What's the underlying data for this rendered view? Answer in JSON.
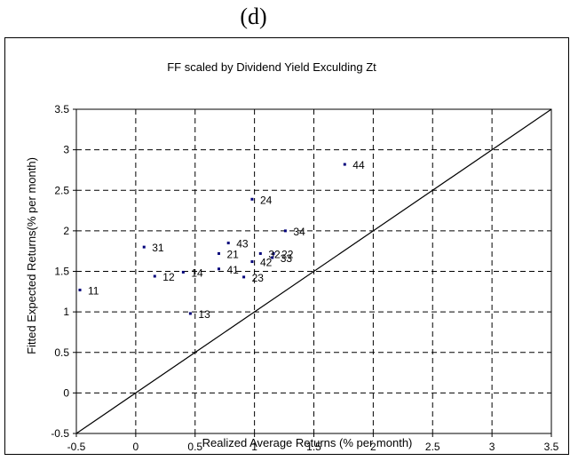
{
  "panel_label": "(d)",
  "chart_data": {
    "type": "scatter",
    "title": "FF  scaled by Dividend Yield  Exculding  Zt",
    "xlabel": "Realized Average Returns (% per month)",
    "ylabel": "Fitted Expected Returns(% per month)",
    "xlim": [
      -0.5,
      3.5
    ],
    "ylim": [
      -0.5,
      3.5
    ],
    "x_ticks": [
      "-0.5",
      "0",
      "0.5",
      "1",
      "1.5",
      "2",
      "2.5",
      "3",
      "3.5"
    ],
    "y_ticks": [
      "-0.5",
      "0",
      "0.5",
      "1",
      "1.5",
      "2",
      "2.5",
      "3",
      "3.5"
    ],
    "grid": true,
    "reference_line": {
      "from": [
        -0.5,
        -0.5
      ],
      "to": [
        3.5,
        3.5
      ]
    },
    "points": [
      {
        "label": "11",
        "x": -0.47,
        "y": 1.27
      },
      {
        "label": "12",
        "x": 0.16,
        "y": 1.44
      },
      {
        "label": "13",
        "x": 0.46,
        "y": 0.98
      },
      {
        "label": "14",
        "x": 0.4,
        "y": 1.49
      },
      {
        "label": "21",
        "x": 0.7,
        "y": 1.72
      },
      {
        "label": "22",
        "x": 1.16,
        "y": 1.72
      },
      {
        "label": "23",
        "x": 0.91,
        "y": 1.43
      },
      {
        "label": "24",
        "x": 0.98,
        "y": 2.39
      },
      {
        "label": "31",
        "x": 0.07,
        "y": 1.8
      },
      {
        "label": "32",
        "x": 1.05,
        "y": 1.72
      },
      {
        "label": "33",
        "x": 1.15,
        "y": 1.67
      },
      {
        "label": "34",
        "x": 1.26,
        "y": 2.0
      },
      {
        "label": "41",
        "x": 0.7,
        "y": 1.53
      },
      {
        "label": "42",
        "x": 0.98,
        "y": 1.62
      },
      {
        "label": "43",
        "x": 0.78,
        "y": 1.85
      },
      {
        "label": "44",
        "x": 1.76,
        "y": 2.82
      }
    ]
  }
}
